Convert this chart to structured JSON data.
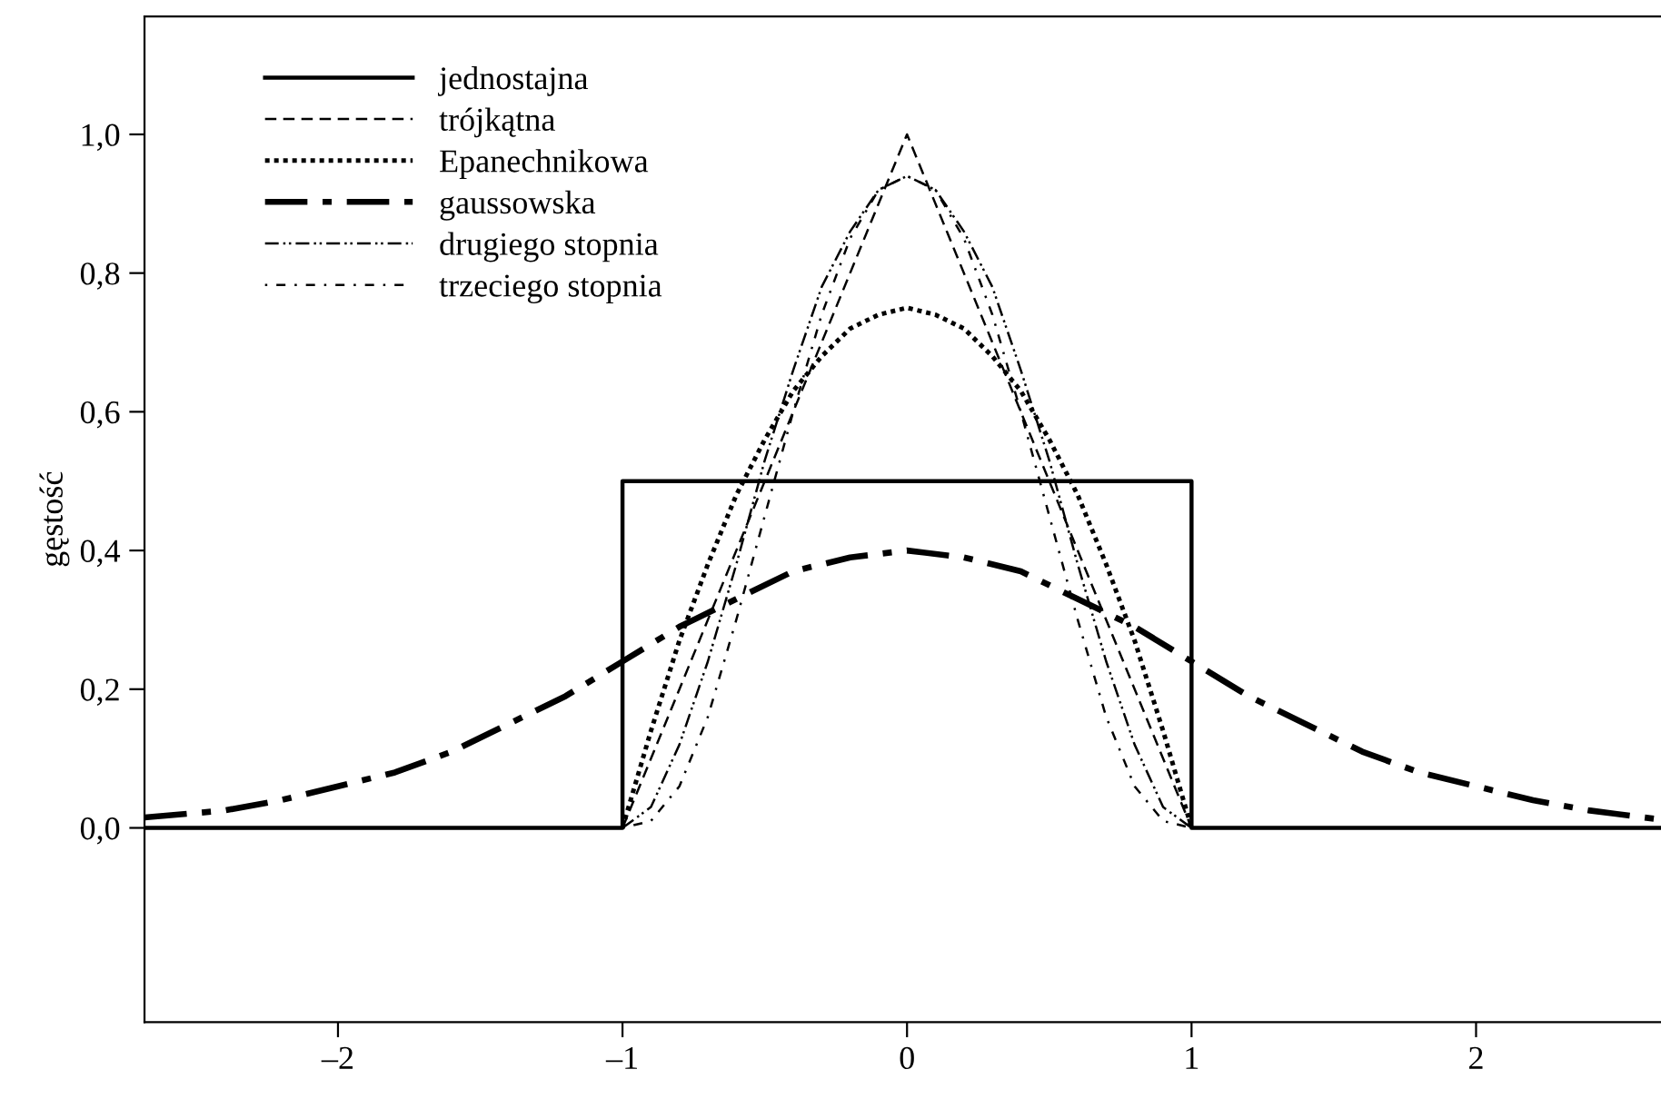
{
  "chart_data": {
    "type": "line",
    "ylabel": "gęstość",
    "xlim": [
      -2.68,
      2.65
    ],
    "ylim": [
      -0.28,
      1.17
    ],
    "xticks": [
      {
        "value": -2,
        "label": "–2"
      },
      {
        "value": -1,
        "label": "–1"
      },
      0,
      1,
      2
    ],
    "yticks": [
      {
        "value": 0,
        "label": "0,0"
      },
      {
        "value": 0.2,
        "label": "0,2"
      },
      {
        "value": 0.4,
        "label": "0,4"
      },
      {
        "value": 0.6,
        "label": "0,6"
      },
      {
        "value": 0.8,
        "label": "0,8"
      },
      {
        "value": 1.0,
        "label": "1,0"
      }
    ],
    "grid": false,
    "legend": "top left",
    "marker": "none",
    "series": [
      {
        "name": "jednostajna",
        "color": "#000000",
        "line_style": "solid",
        "x": [
          -2.68,
          -1,
          -1,
          1,
          1,
          2.65
        ],
        "values": [
          0,
          0,
          0.5,
          0.5,
          0,
          0
        ]
      },
      {
        "name": "trójkątna",
        "color": "#000000",
        "line_style": "dashed",
        "x": [
          -1,
          0,
          1
        ],
        "values": [
          0,
          1.0,
          0
        ]
      },
      {
        "name": "Epanechnikowa",
        "color": "#000000",
        "line_style": "dotted",
        "x": [
          -1,
          -0.9,
          -0.8,
          -0.7,
          -0.6,
          -0.5,
          -0.4,
          -0.3,
          -0.2,
          -0.1,
          0,
          0.1,
          0.2,
          0.3,
          0.4,
          0.5,
          0.6,
          0.7,
          0.8,
          0.9,
          1
        ],
        "values": [
          0,
          0.14,
          0.27,
          0.38,
          0.48,
          0.56,
          0.63,
          0.68,
          0.72,
          0.74,
          0.75,
          0.74,
          0.72,
          0.68,
          0.63,
          0.56,
          0.48,
          0.38,
          0.27,
          0.14,
          0
        ]
      },
      {
        "name": "gaussowska",
        "color": "#000000",
        "line_style": "dashdot",
        "x": [
          -2.68,
          -2.4,
          -2.2,
          -2.0,
          -1.8,
          -1.6,
          -1.4,
          -1.2,
          -1.0,
          -0.8,
          -0.6,
          -0.4,
          -0.2,
          0,
          0.2,
          0.4,
          0.6,
          0.8,
          1.0,
          1.2,
          1.4,
          1.6,
          1.8,
          2.0,
          2.2,
          2.4,
          2.65
        ],
        "values": [
          0.015,
          0.025,
          0.04,
          0.06,
          0.08,
          0.11,
          0.15,
          0.19,
          0.24,
          0.29,
          0.33,
          0.37,
          0.39,
          0.4,
          0.39,
          0.37,
          0.33,
          0.29,
          0.24,
          0.19,
          0.15,
          0.11,
          0.08,
          0.06,
          0.04,
          0.025,
          0.012
        ]
      },
      {
        "name": "drugiego stopnia",
        "color": "#000000",
        "line_style": "dashdotdot",
        "x": [
          -1,
          -0.9,
          -0.8,
          -0.7,
          -0.6,
          -0.5,
          -0.4,
          -0.3,
          -0.2,
          -0.1,
          0,
          0.1,
          0.2,
          0.3,
          0.4,
          0.5,
          0.6,
          0.7,
          0.8,
          0.9,
          1
        ],
        "values": [
          0,
          0.03,
          0.12,
          0.24,
          0.38,
          0.53,
          0.66,
          0.78,
          0.86,
          0.92,
          0.94,
          0.92,
          0.86,
          0.78,
          0.66,
          0.53,
          0.38,
          0.24,
          0.12,
          0.03,
          0
        ]
      },
      {
        "name": "trzeciego stopnia",
        "color": "#000000",
        "line_style": "sparse",
        "x": [
          -1,
          -0.9,
          -0.8,
          -0.7,
          -0.6,
          -0.5,
          -0.4,
          -0.3,
          -0.2,
          -0.1,
          0,
          0.1,
          0.2,
          0.3,
          0.4,
          0.5,
          0.6,
          0.7,
          0.8,
          0.9,
          1
        ],
        "values": [
          0,
          0.01,
          0.06,
          0.16,
          0.3,
          0.45,
          0.6,
          0.74,
          0.85,
          0.92,
          0.94,
          0.92,
          0.85,
          0.74,
          0.6,
          0.45,
          0.3,
          0.16,
          0.06,
          0.01,
          0
        ]
      }
    ]
  }
}
